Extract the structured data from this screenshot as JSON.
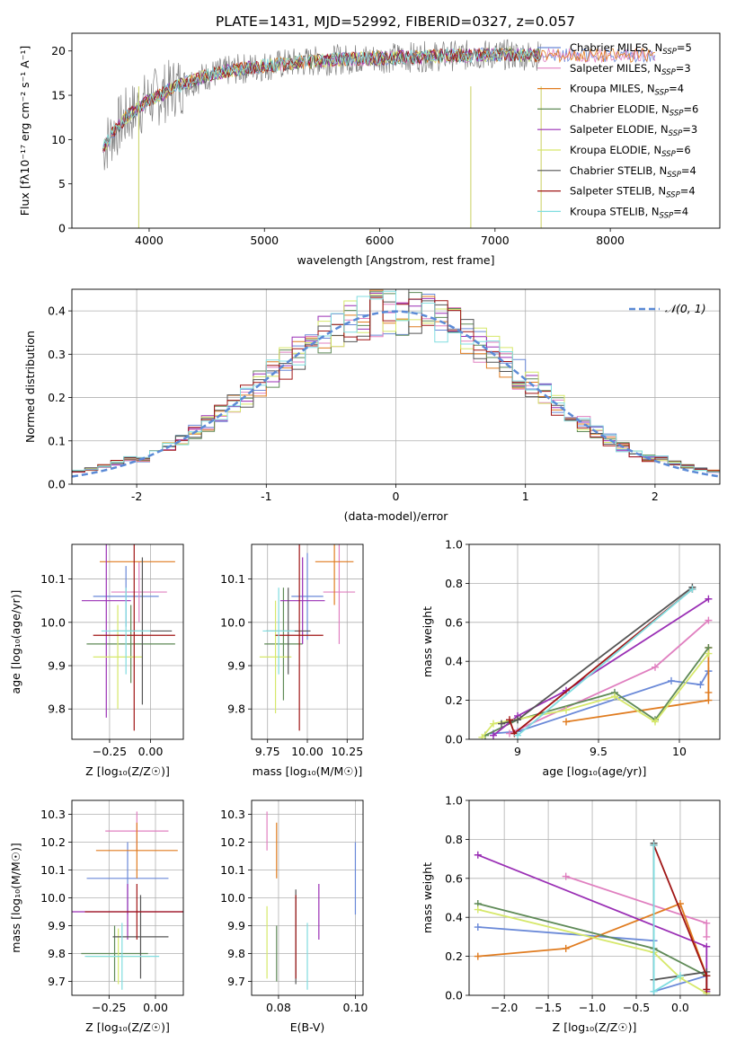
{
  "figure_title": "PLATE=1431, MJD=52992, FIBERID=0327, z=0.057",
  "models": [
    {
      "name": "Chabrier MILES",
      "nssp": "5",
      "color": "#6a89d8"
    },
    {
      "name": "Salpeter MILES",
      "nssp": "3",
      "color": "#e080c0"
    },
    {
      "name": "Kroupa MILES",
      "nssp": "4",
      "color": "#e07c20"
    },
    {
      "name": "Chabrier ELODIE",
      "nssp": "6",
      "color": "#5f8a57"
    },
    {
      "name": "Salpeter ELODIE",
      "nssp": "3",
      "color": "#9a2fb5"
    },
    {
      "name": "Kroupa ELODIE",
      "nssp": "6",
      "color": "#d6e86a"
    },
    {
      "name": "Chabrier STELIB",
      "nssp": "4",
      "color": "#555555"
    },
    {
      "name": "Salpeter STELIB",
      "nssp": "4",
      "color": "#a01515"
    },
    {
      "name": "Kroupa STELIB",
      "nssp": "4",
      "color": "#80dde0"
    }
  ],
  "chart_data": [
    {
      "id": "spectrum",
      "type": "line",
      "xlabel": "wavelength [Angstrom, rest frame]",
      "ylabel": "Flux [fλ10⁻¹⁷ erg cm⁻² s⁻¹ A⁻¹]",
      "xlim": [
        3330,
        8950
      ],
      "ylim": [
        0,
        22
      ],
      "xticks": [
        4000,
        5000,
        6000,
        7000,
        8000
      ],
      "yticks": [
        0,
        5,
        10,
        15,
        20
      ],
      "data_color": "#808080",
      "continuum": {
        "x": [
          3600,
          3700,
          3800,
          3900,
          4000,
          4100,
          4200,
          4300,
          4500,
          4700,
          5000,
          5300,
          5600,
          6000,
          6500,
          7000,
          7400
        ],
        "y": [
          9,
          11,
          12.5,
          13.5,
          14.5,
          15,
          15.8,
          16.3,
          17.2,
          17.8,
          18.3,
          18.7,
          19,
          19.2,
          19.4,
          19.6,
          19.5
        ]
      },
      "model_spectrum_end": [
        8400,
        8400,
        8400,
        7400,
        7400,
        7400,
        7400,
        7400,
        7400
      ],
      "grid": false
    },
    {
      "id": "residuals",
      "type": "histogram",
      "xlabel": "(data-model)/error",
      "ylabel": "Normed distribution",
      "xlim": [
        -2.5,
        2.5
      ],
      "ylim": [
        0,
        0.45
      ],
      "xticks": [
        -2,
        -1,
        0,
        1,
        2
      ],
      "yticks": [
        0,
        0.1,
        0.2,
        0.3,
        0.4
      ],
      "reference_label": "𝒩(0, 1)",
      "reference_color": "#5b8ad6",
      "bin_width": 0.1,
      "grid": true
    },
    {
      "id": "age_vs_Z",
      "type": "errorbar",
      "xlabel": "Z [log₁₀(Z/Z☉)]",
      "ylabel": "age  [log₁₀(age/yr)]",
      "xlim": [
        -0.48,
        0.2
      ],
      "ylim": [
        9.73,
        10.18
      ],
      "xticks": [
        -0.25,
        0.0
      ],
      "xticklabels": [
        "−0.25",
        "0.00"
      ],
      "yticks": [
        9.8,
        9.9,
        10.0,
        10.1
      ],
      "points": [
        {
          "x": -0.15,
          "xerr": 0.2,
          "y": 10.06,
          "yerr": 0.07
        },
        {
          "x": -0.07,
          "xerr": 0.17,
          "y": 10.07,
          "yerr": 0.07
        },
        {
          "x": -0.08,
          "xerr": 0.23,
          "y": 10.14,
          "yerr": 0.0
        },
        {
          "x": -0.12,
          "xerr": 0.27,
          "y": 9.95,
          "yerr": 0.09
        },
        {
          "x": -0.27,
          "xerr": 0.15,
          "y": 10.05,
          "yerr": 0.27
        },
        {
          "x": -0.2,
          "xerr": 0.15,
          "y": 9.92,
          "yerr": 0.12
        },
        {
          "x": -0.05,
          "xerr": 0.18,
          "y": 9.98,
          "yerr": 0.17
        },
        {
          "x": -0.1,
          "xerr": 0.25,
          "y": 9.97,
          "yerr": 0.22
        },
        {
          "x": -0.15,
          "xerr": 0.15,
          "y": 9.98,
          "yerr": 0.1
        }
      ],
      "grid": true
    },
    {
      "id": "age_vs_mass",
      "type": "errorbar",
      "xlabel": "mass [log₁₀(M/M☉)]",
      "ylabel": "",
      "xlim": [
        9.65,
        10.35
      ],
      "ylim": [
        9.73,
        10.18
      ],
      "xticks": [
        9.75,
        10.0,
        10.25
      ],
      "xticklabels": [
        "9.75",
        "10.00",
        "10.25"
      ],
      "yticks": [
        9.8,
        9.9,
        10.0,
        10.1
      ],
      "points": [
        {
          "x": 10.0,
          "xerr": 0.1,
          "y": 10.06,
          "yerr": 0.1
        },
        {
          "x": 10.2,
          "xerr": 0.1,
          "y": 10.07,
          "yerr": 0.12
        },
        {
          "x": 10.17,
          "xerr": 0.12,
          "y": 10.14,
          "yerr": 0.1
        },
        {
          "x": 9.85,
          "xerr": 0.12,
          "y": 9.95,
          "yerr": 0.13
        },
        {
          "x": 9.97,
          "xerr": 0.14,
          "y": 10.05,
          "yerr": 0.1
        },
        {
          "x": 9.8,
          "xerr": 0.1,
          "y": 9.92,
          "yerr": 0.13
        },
        {
          "x": 9.88,
          "xerr": 0.14,
          "y": 9.98,
          "yerr": 0.1
        },
        {
          "x": 9.95,
          "xerr": 0.15,
          "y": 9.97,
          "yerr": 0.22
        },
        {
          "x": 9.82,
          "xerr": 0.1,
          "y": 9.98,
          "yerr": 0.1
        }
      ],
      "grid": true
    },
    {
      "id": "weight_vs_age",
      "type": "line",
      "xlabel": "age  [log₁₀(age/yr)]",
      "ylabel": "mass weight",
      "xlim": [
        8.7,
        10.25
      ],
      "ylim": [
        0,
        1.0
      ],
      "xticks": [
        9.0,
        9.5,
        10.0
      ],
      "yticks": [
        0,
        0.2,
        0.4,
        0.6,
        0.8,
        1.0
      ],
      "series": [
        {
          "x": [
            8.85,
            9.0,
            9.95,
            10.13,
            10.18,
            10.18
          ],
          "y": [
            0.03,
            0.04,
            0.3,
            0.28,
            0.35,
            0.35
          ]
        },
        {
          "x": [
            8.95,
            9.85,
            10.18
          ],
          "y": [
            0.03,
            0.37,
            0.61
          ]
        },
        {
          "x": [
            9.3,
            10.18,
            10.18,
            10.18
          ],
          "y": [
            0.09,
            0.2,
            0.24,
            0.47
          ]
        },
        {
          "x": [
            8.8,
            9.0,
            9.6,
            9.85,
            10.18
          ],
          "y": [
            0.02,
            0.1,
            0.24,
            0.1,
            0.47
          ]
        },
        {
          "x": [
            8.85,
            9.0,
            9.3,
            10.18
          ],
          "y": [
            0.02,
            0.12,
            0.25,
            0.72
          ]
        },
        {
          "x": [
            8.78,
            8.85,
            9.3,
            9.6,
            9.85,
            10.18
          ],
          "y": [
            0.01,
            0.08,
            0.15,
            0.22,
            0.09,
            0.44
          ]
        },
        {
          "x": [
            8.9,
            9.0,
            10.08
          ],
          "y": [
            0.08,
            0.1,
            0.78
          ]
        },
        {
          "x": [
            8.95,
            8.98,
            10.08
          ],
          "y": [
            0.1,
            0.03,
            0.77
          ]
        },
        {
          "x": [
            9.0,
            10.08
          ],
          "y": [
            0.02,
            0.77
          ]
        }
      ],
      "grid": true
    },
    {
      "id": "mass_vs_Z",
      "type": "errorbar",
      "xlabel": "Z [log₁₀(Z/Z☉)]",
      "ylabel": "mass [log₁₀(M/M☉)]",
      "xlim": [
        -0.45,
        0.15
      ],
      "ylim": [
        9.65,
        10.35
      ],
      "xticks": [
        -0.25,
        0.0
      ],
      "xticklabels": [
        "−0.25",
        "0.00"
      ],
      "yticks": [
        9.7,
        9.8,
        9.9,
        10.0,
        10.1,
        10.2,
        10.3
      ],
      "points": [
        {
          "x": -0.15,
          "xerr": 0.22,
          "y": 10.07,
          "yerr": 0.13
        },
        {
          "x": -0.1,
          "xerr": 0.17,
          "y": 10.24,
          "yerr": 0.07
        },
        {
          "x": -0.1,
          "xerr": 0.22,
          "y": 10.17,
          "yerr": 0.1
        },
        {
          "x": -0.22,
          "xerr": 0.18,
          "y": 9.8,
          "yerr": 0.1
        },
        {
          "x": -0.15,
          "xerr": 0.32,
          "y": 9.95,
          "yerr": 0.1
        },
        {
          "x": -0.2,
          "xerr": 0.17,
          "y": 9.79,
          "yerr": 0.1
        },
        {
          "x": -0.08,
          "xerr": 0.15,
          "y": 9.86,
          "yerr": 0.15
        },
        {
          "x": -0.1,
          "xerr": 0.28,
          "y": 9.95,
          "yerr": 0.1
        },
        {
          "x": -0.18,
          "xerr": 0.2,
          "y": 9.79,
          "yerr": 0.12
        }
      ],
      "grid": true
    },
    {
      "id": "mass_vs_EBV",
      "type": "errorbar",
      "xlabel": "E(B-V)",
      "ylabel": "",
      "xlim": [
        0.073,
        0.102
      ],
      "ylim": [
        9.65,
        10.35
      ],
      "xticks": [
        0.08,
        0.1
      ],
      "xticklabels": [
        "0.08",
        "0.10"
      ],
      "yticks": [
        9.7,
        9.8,
        9.9,
        10.0,
        10.1,
        10.2,
        10.3
      ],
      "points": [
        {
          "x": 0.1,
          "xerr": 0,
          "y": 10.07,
          "yerr": 0.13
        },
        {
          "x": 0.077,
          "xerr": 0,
          "y": 10.24,
          "yerr": 0.07
        },
        {
          "x": 0.0795,
          "xerr": 0,
          "y": 10.17,
          "yerr": 0.1
        },
        {
          "x": 0.0795,
          "xerr": 0,
          "y": 9.8,
          "yerr": 0.1
        },
        {
          "x": 0.0905,
          "xerr": 0,
          "y": 9.95,
          "yerr": 0.1
        },
        {
          "x": 0.077,
          "xerr": 0,
          "y": 9.84,
          "yerr": 0.13
        },
        {
          "x": 0.0845,
          "xerr": 0,
          "y": 9.86,
          "yerr": 0.17
        },
        {
          "x": 0.0845,
          "xerr": 0,
          "y": 9.86,
          "yerr": 0.15
        },
        {
          "x": 0.0875,
          "xerr": 0,
          "y": 9.79,
          "yerr": 0.12
        }
      ],
      "grid": true
    },
    {
      "id": "weight_vs_Z",
      "type": "line",
      "xlabel": "Z [log₁₀(Z/Z☉)]",
      "ylabel": "mass weight",
      "xlim": [
        -2.4,
        0.45
      ],
      "ylim": [
        0,
        1.0
      ],
      "xticks": [
        -2.0,
        -1.5,
        -1.0,
        -0.5,
        0.0
      ],
      "xticklabels": [
        "−2.0",
        "−1.5",
        "−1.0",
        "−0.5",
        "0.0"
      ],
      "yticks": [
        0,
        0.2,
        0.4,
        0.6,
        0.8,
        1.0
      ],
      "series": [
        {
          "x": [
            -2.3,
            -0.3,
            -0.3,
            0.3
          ],
          "y": [
            0.35,
            0.28,
            0.02,
            0.1
          ]
        },
        {
          "x": [
            -1.3,
            0.3,
            0.3
          ],
          "y": [
            0.61,
            0.37,
            0.3
          ]
        },
        {
          "x": [
            -2.3,
            -1.3,
            0.0,
            0.3
          ],
          "y": [
            0.2,
            0.24,
            0.47,
            0.1
          ]
        },
        {
          "x": [
            -2.3,
            -0.3,
            0.3,
            0.3,
            0.3
          ],
          "y": [
            0.47,
            0.24,
            0.1,
            0.02,
            0.1
          ]
        },
        {
          "x": [
            -2.3,
            0.3,
            0.3
          ],
          "y": [
            0.72,
            0.25,
            0.02
          ]
        },
        {
          "x": [
            -2.3,
            -0.3,
            0.0,
            0.3
          ],
          "y": [
            0.44,
            0.22,
            0.09,
            0.01
          ]
        },
        {
          "x": [
            -0.3,
            -0.3,
            0.3
          ],
          "y": [
            0.78,
            0.08,
            0.12
          ]
        },
        {
          "x": [
            -0.3,
            0.3,
            0.3
          ],
          "y": [
            0.77,
            0.1,
            0.03
          ]
        },
        {
          "x": [
            -0.3,
            -0.3,
            0.0
          ],
          "y": [
            0.77,
            0.02,
            0.1
          ]
        }
      ],
      "grid": true
    }
  ]
}
